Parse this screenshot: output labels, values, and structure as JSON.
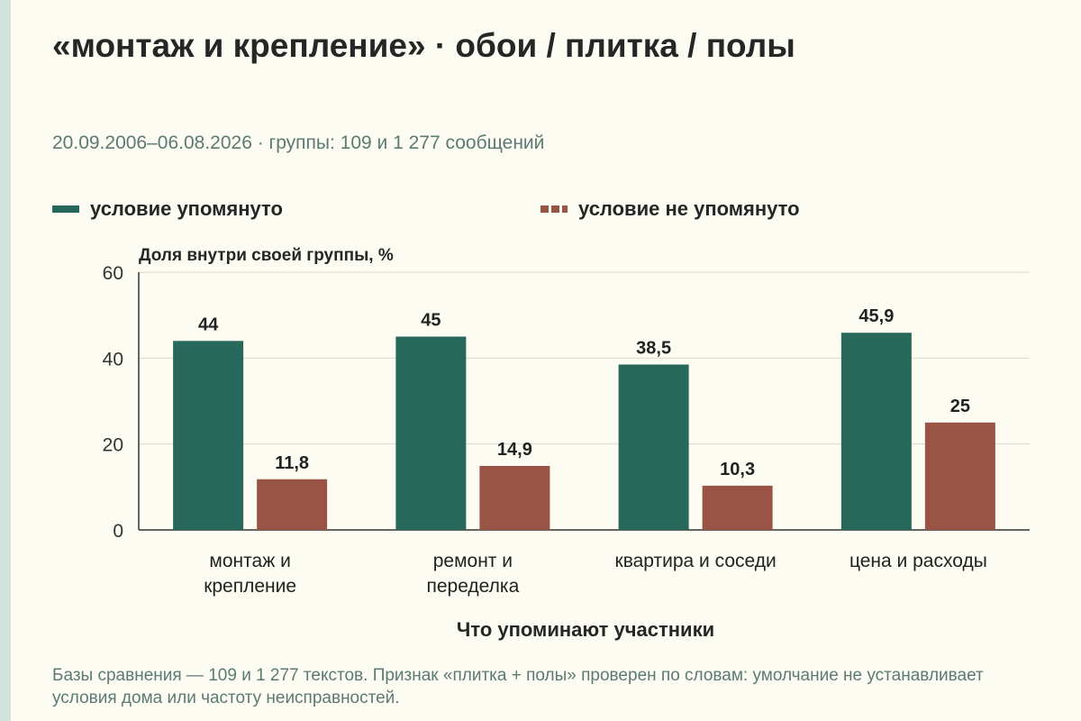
{
  "header": {
    "title": "«монтаж и крепление» · обои / плитка / полы",
    "subtitle": "20.09.2006–06.08.2026 · группы: 109 и 1 277 сообщений"
  },
  "legend": [
    {
      "label": "условие упомянуто",
      "color": "#27685a",
      "style": "solid"
    },
    {
      "label": "условие не упомянуто",
      "color": "#9a5446",
      "style": "dashed"
    }
  ],
  "chart_data": {
    "type": "bar",
    "categories": [
      [
        "монтаж и",
        "крепление"
      ],
      [
        "ремонт и",
        "переделка"
      ],
      [
        "квартира и соседи"
      ],
      [
        "цена и расходы"
      ]
    ],
    "series": [
      {
        "name": "условие упомянуто",
        "color": "#27685a",
        "values": [
          44,
          45,
          38.5,
          45.9
        ],
        "labels": [
          "44",
          "45",
          "38,5",
          "45,9"
        ]
      },
      {
        "name": "условие не упомянуто",
        "color": "#9a5446",
        "values": [
          11.8,
          14.9,
          10.3,
          25
        ],
        "labels": [
          "11,8",
          "14,9",
          "10,3",
          "25"
        ]
      }
    ],
    "ylabel": "Доля внутри своей группы, %",
    "xlabel": "Что упоминают участники",
    "ylim": [
      0,
      60
    ],
    "yticks": [
      0,
      20,
      40,
      60
    ],
    "grid": true,
    "legend_position": "top"
  },
  "footnote": "Базы сравнения — 109 и 1 277 текстов. Признак «плитка + полы» проверен по словам: умолчание не устанавливает условия дома или частоту неисправностей."
}
